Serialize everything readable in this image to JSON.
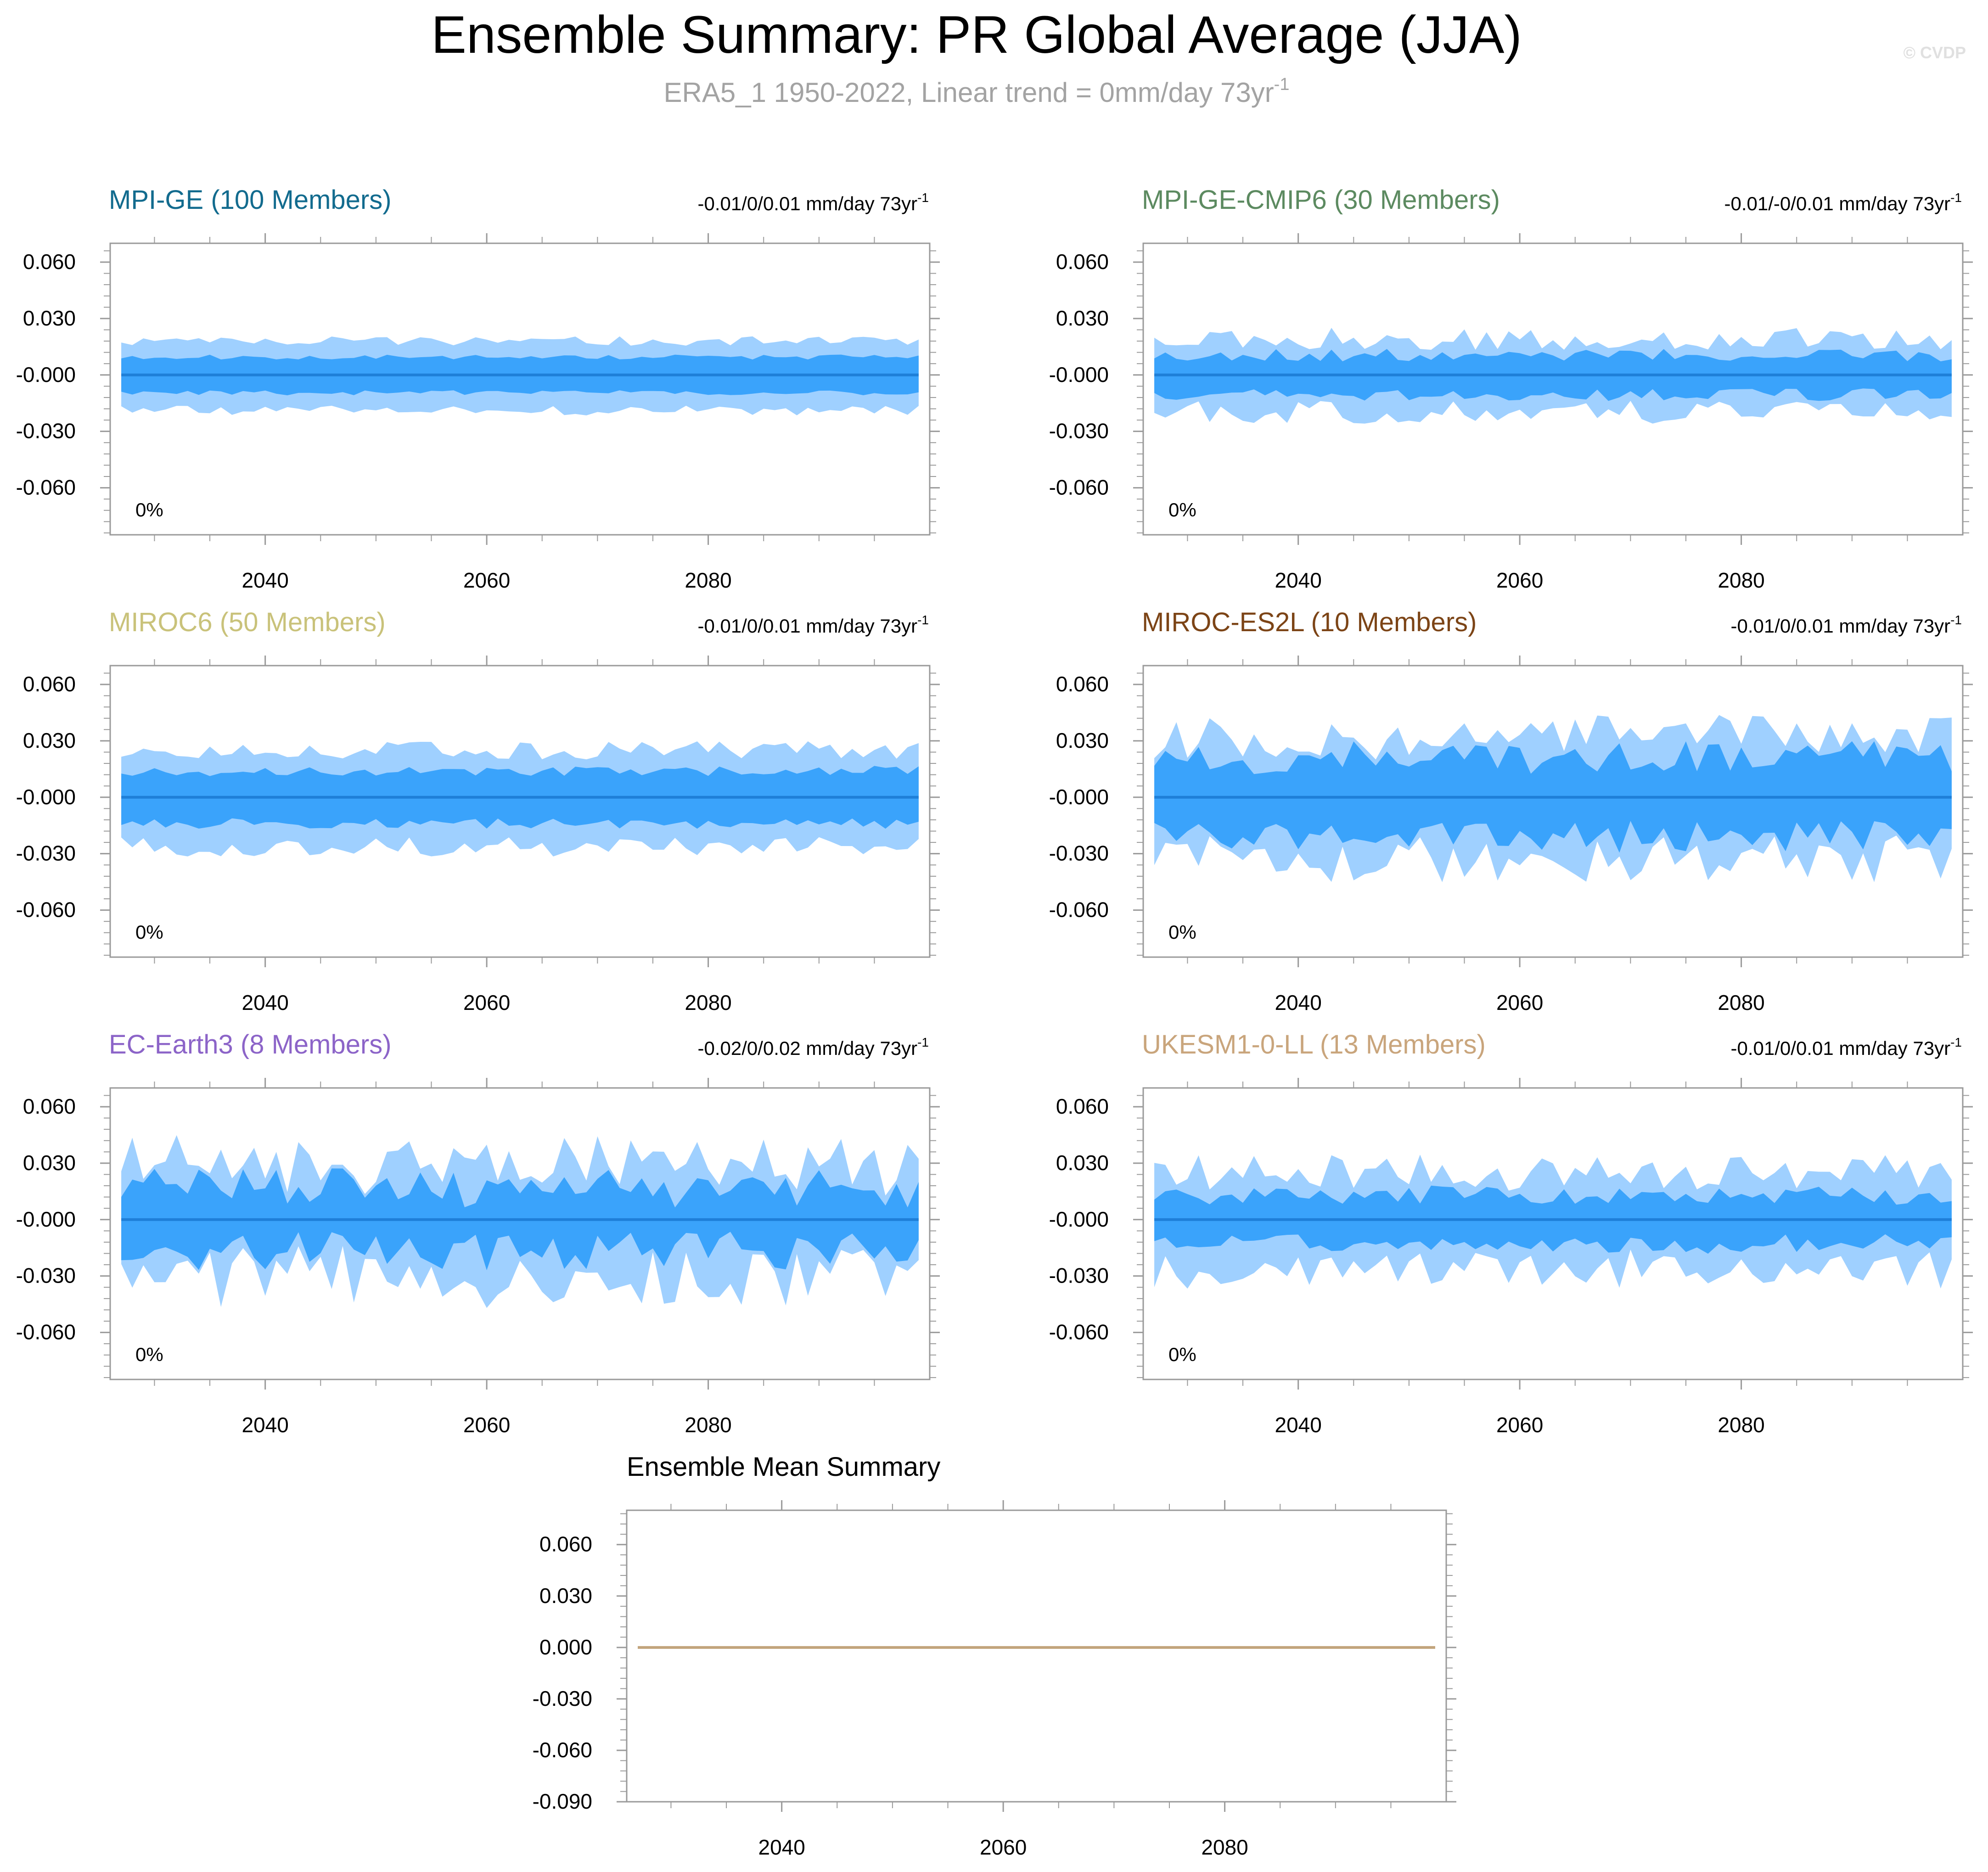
{
  "title": "Ensemble Summary: PR Global Average (JJA)",
  "subtitle": {
    "text": "ERA5_1 1950-2022, Linear trend = 0mm/day 73yr",
    "superscript": "-1"
  },
  "copyright": "© CVDP",
  "colors": {
    "band_outer": "#9fd0ff",
    "band_inner": "#3aa3fb",
    "mean_line": "#1e7fd8",
    "axis": "#9a9a9a",
    "mean_summary_line": "#c2a47c",
    "subtitle": "#a3a3a3"
  },
  "chart_data": [
    {
      "type": "area",
      "title": "MPI-GE (100 Members)",
      "title_color": "#126b8e",
      "trend": {
        "text": "-0.01/0/0.01 mm/day 73yr",
        "superscript": "-1"
      },
      "annotation": "0%",
      "x_start": 2027,
      "x_end": 2099,
      "xticks": [
        2040,
        2060,
        2080
      ],
      "yticks": [
        0.06,
        0.03,
        0.0,
        -0.03,
        -0.06
      ],
      "ytick_labels": [
        "0.060",
        "0.030",
        "-0.000",
        "-0.030",
        "-0.060"
      ],
      "ylim": [
        -0.085,
        0.07
      ],
      "mean": 0.0,
      "outer_amp": 0.018,
      "inner_amp": 0.0095,
      "noise": 0.14,
      "seed": 11
    },
    {
      "type": "area",
      "title": "MPI-GE-CMIP6 (30 Members)",
      "title_color": "#5c8a60",
      "trend": {
        "text": "-0.01/-0/0.01 mm/day 73yr",
        "superscript": "-1"
      },
      "annotation": "0%",
      "x_start": 2027,
      "x_end": 2099,
      "xticks": [
        2040,
        2060,
        2080
      ],
      "yticks": [
        0.06,
        0.03,
        0.0,
        -0.03,
        -0.06
      ],
      "ytick_labels": [
        "0.060",
        "0.030",
        "-0.000",
        "-0.030",
        "-0.060"
      ],
      "ylim": [
        -0.085,
        0.07
      ],
      "mean": 0.0,
      "outer_amp": 0.019,
      "inner_amp": 0.0105,
      "noise": 0.32,
      "seed": 23
    },
    {
      "type": "area",
      "title": "MIROC6 (50 Members)",
      "title_color": "#c9c27a",
      "trend": {
        "text": "-0.01/0/0.01 mm/day 73yr",
        "superscript": "-1"
      },
      "annotation": "0%",
      "x_start": 2027,
      "x_end": 2099,
      "xticks": [
        2040,
        2060,
        2080
      ],
      "yticks": [
        0.06,
        0.03,
        0.0,
        -0.03,
        -0.06
      ],
      "ytick_labels": [
        "0.060",
        "0.030",
        "-0.000",
        "-0.030",
        "-0.060"
      ],
      "ylim": [
        -0.085,
        0.07
      ],
      "mean": 0.0,
      "outer_amp": 0.025,
      "inner_amp": 0.014,
      "noise": 0.2,
      "seed": 37
    },
    {
      "type": "area",
      "title": "MIROC-ES2L (10 Members)",
      "title_color": "#7c4416",
      "trend": {
        "text": "-0.01/0/0.01 mm/day 73yr",
        "superscript": "-1"
      },
      "annotation": "0%",
      "x_start": 2027,
      "x_end": 2099,
      "xticks": [
        2040,
        2060,
        2080
      ],
      "yticks": [
        0.06,
        0.03,
        0.0,
        -0.03,
        -0.06
      ],
      "ytick_labels": [
        "0.060",
        "0.030",
        "-0.000",
        "-0.030",
        "-0.060"
      ],
      "ylim": [
        -0.085,
        0.07
      ],
      "mean": 0.0,
      "outer_amp": 0.031,
      "inner_amp": 0.021,
      "noise": 0.42,
      "seed": 53
    },
    {
      "type": "area",
      "title": "EC-Earth3 (8 Members)",
      "title_color": "#8c64c8",
      "trend": {
        "text": "-0.02/0/0.02 mm/day 73yr",
        "superscript": "-1"
      },
      "annotation": "0%",
      "x_start": 2027,
      "x_end": 2099,
      "xticks": [
        2040,
        2060,
        2080
      ],
      "yticks": [
        0.06,
        0.03,
        0.0,
        -0.03,
        -0.06
      ],
      "ytick_labels": [
        "0.060",
        "0.030",
        "-0.000",
        "-0.030",
        "-0.060"
      ],
      "ylim": [
        -0.085,
        0.07
      ],
      "mean": 0.0,
      "outer_amp": 0.028,
      "inner_amp": 0.017,
      "noise": 0.62,
      "seed": 71
    },
    {
      "type": "area",
      "title": "UKESM1-0-LL (13 Members)",
      "title_color": "#c9a57c",
      "trend": {
        "text": "-0.01/0/0.01 mm/day 73yr",
        "superscript": "-1"
      },
      "annotation": "0%",
      "x_start": 2027,
      "x_end": 2099,
      "xticks": [
        2040,
        2060,
        2080
      ],
      "yticks": [
        0.06,
        0.03,
        0.0,
        -0.03,
        -0.06
      ],
      "ytick_labels": [
        "0.060",
        "0.030",
        "-0.000",
        "-0.030",
        "-0.060"
      ],
      "ylim": [
        -0.085,
        0.07
      ],
      "mean": 0.0,
      "outer_amp": 0.025,
      "inner_amp": 0.013,
      "noise": 0.4,
      "seed": 89
    },
    {
      "type": "line",
      "title": "Ensemble Mean Summary",
      "title_color": "#000000",
      "x_start": 2027,
      "x_end": 2099,
      "xticks": [
        2040,
        2060,
        2080
      ],
      "yticks": [
        0.06,
        0.03,
        0.0,
        -0.03,
        -0.06,
        -0.09
      ],
      "ytick_labels": [
        "0.060",
        "0.030",
        "0.000",
        "-0.030",
        "-0.060",
        "-0.090"
      ],
      "ylim": [
        -0.09,
        0.08
      ],
      "series": [
        {
          "name": "ensemble mean",
          "values": [
            0.0
          ]
        }
      ]
    }
  ]
}
